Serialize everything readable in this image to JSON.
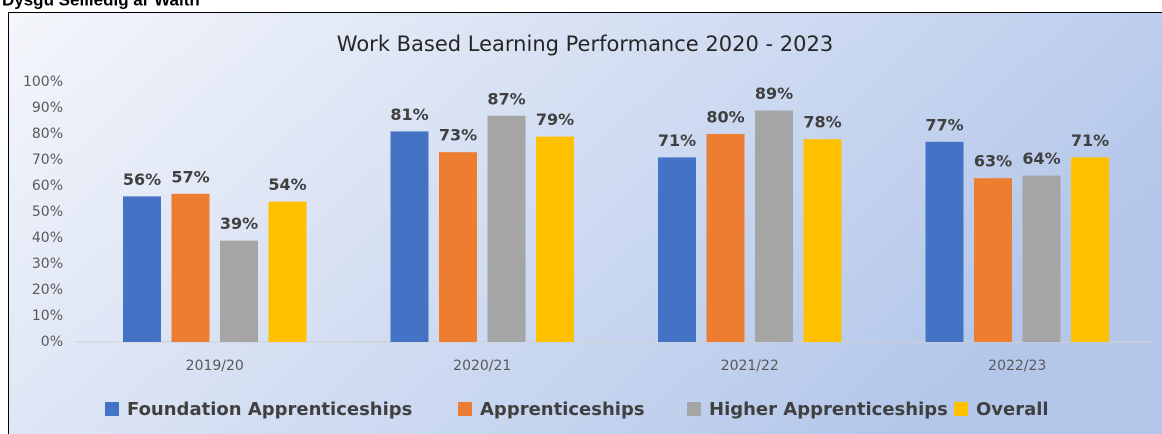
{
  "heading": "Dysgu Seiliedig ar Waith",
  "chart_data": {
    "type": "bar",
    "title": "Work Based Learning Performance 2020 - 2023",
    "categories": [
      "2019/20",
      "2020/21",
      "2021/22",
      "2022/23"
    ],
    "series": [
      {
        "name": "Foundation Apprenticeships",
        "color": "#4472c4",
        "values": [
          56,
          81,
          71,
          77
        ],
        "value_labels": [
          "56%",
          "81%",
          "71%",
          "77%"
        ]
      },
      {
        "name": "Apprenticeships",
        "color": "#ed7d31",
        "values": [
          57,
          73,
          80,
          63
        ],
        "value_labels": [
          "57%",
          "73%",
          "80%",
          "63%"
        ]
      },
      {
        "name": "Higher Apprenticeships",
        "color": "#a5a5a5",
        "values": [
          39,
          87,
          89,
          64
        ],
        "value_labels": [
          "39%",
          "87%",
          "89%",
          "64%"
        ]
      },
      {
        "name": "Overall",
        "color": "#ffc000",
        "values": [
          54,
          79,
          78,
          71
        ],
        "value_labels": [
          "54%",
          "79%",
          "78%",
          "71%"
        ]
      }
    ],
    "ylim": [
      0,
      100
    ],
    "yticks": [
      {
        "value": 0,
        "label": "0%"
      },
      {
        "value": 10,
        "label": "10%"
      },
      {
        "value": 20,
        "label": "20%"
      },
      {
        "value": 30,
        "label": "30%"
      },
      {
        "value": 40,
        "label": "40%"
      },
      {
        "value": 50,
        "label": "50%"
      },
      {
        "value": 60,
        "label": "60%"
      },
      {
        "value": 70,
        "label": "70%"
      },
      {
        "value": 80,
        "label": "80%"
      },
      {
        "value": 90,
        "label": "90%"
      },
      {
        "value": 100,
        "label": "100%"
      }
    ],
    "grid": false,
    "legend": "bottom"
  }
}
